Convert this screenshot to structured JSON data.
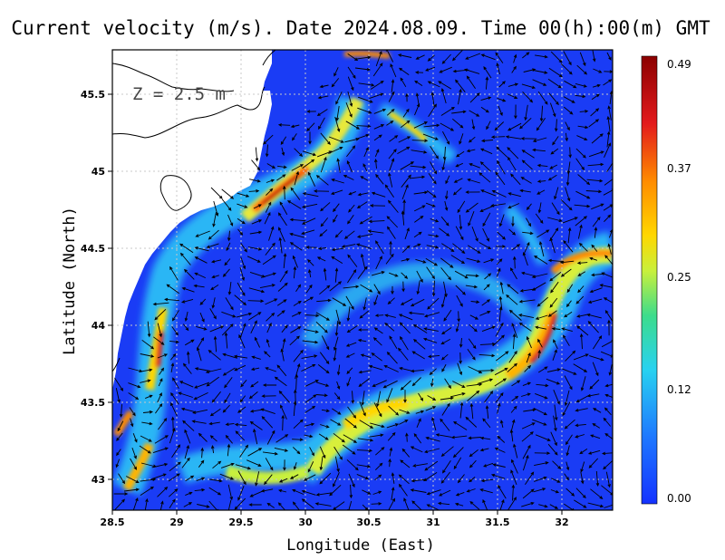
{
  "title": "Current velocity (m/s). Date 2024.08.09. Time 00(h):00(m) GMT",
  "depth_label": "Z = 2.5 m",
  "x_axis": {
    "label": "Longitude (East)",
    "ticks": [
      "28.5",
      "29",
      "29.5",
      "30",
      "30.5",
      "31",
      "31.5",
      "32"
    ]
  },
  "y_axis": {
    "label": "Latitude (North)",
    "ticks": [
      "43",
      "43.5",
      "44",
      "44.5",
      "45",
      "45.5"
    ]
  },
  "colorbar": {
    "ticks": [
      "0.49",
      "0.37",
      "0.25",
      "0.12",
      "0.00"
    ],
    "colors": [
      "#8b0000",
      "#e31a1c",
      "#ff8c00",
      "#ffd700",
      "#c8f03c",
      "#3cdc8c",
      "#28d2f0",
      "#1e78ff",
      "#1432ff"
    ]
  },
  "map": {
    "lon_range": [
      28.5,
      32.4
    ],
    "lat_range": [
      42.8,
      45.8
    ],
    "colors": {
      "sea_low": "#1a3cf5",
      "land": "#ffffff",
      "coast": "#000000",
      "grid": "#bdbdbd",
      "arrow": "#000000"
    }
  }
}
